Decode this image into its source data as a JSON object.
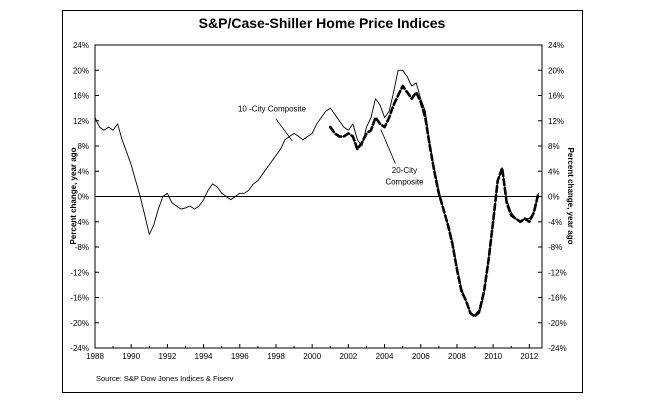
{
  "chart_data": {
    "type": "line",
    "title": "S&P/Case-Shiller Home Price Indices",
    "ylabel_left": "Percent change, year ago",
    "ylabel_right": "Percent change, year ago",
    "source": "Source: S&P Dow Jones Indices & Fiserv",
    "xlim": [
      1988,
      2012.7
    ],
    "ylim": [
      -24,
      24
    ],
    "x_ticks": [
      "1988",
      "1990",
      "1992",
      "1994",
      "1996",
      "1998",
      "2000",
      "2002",
      "2004",
      "2006",
      "2008",
      "2010",
      "2012"
    ],
    "y_ticks": [
      "24%",
      "20%",
      "16%",
      "12%",
      "8%",
      "4%",
      "0%",
      "-4%",
      "-8%",
      "-12%",
      "-16%",
      "-20%",
      "-24%"
    ],
    "grid": false,
    "annotations": {
      "ten_city": "10 -City Composite",
      "twenty_city_line1": "20-City",
      "twenty_city_line2": "Composite"
    },
    "series": [
      {
        "name": "10 -City Composite",
        "style": "solid",
        "color": "#000000",
        "x": [
          1988.0,
          1988.25,
          1988.5,
          1988.75,
          1989.0,
          1989.25,
          1989.5,
          1989.75,
          1990.0,
          1990.25,
          1990.5,
          1990.75,
          1991.0,
          1991.25,
          1991.5,
          1991.75,
          1992.0,
          1992.25,
          1992.5,
          1992.75,
          1993.0,
          1993.25,
          1993.5,
          1993.75,
          1994.0,
          1994.25,
          1994.5,
          1994.75,
          1995.0,
          1995.25,
          1995.5,
          1995.75,
          1996.0,
          1996.25,
          1996.5,
          1996.75,
          1997.0,
          1997.25,
          1997.5,
          1997.75,
          1998.0,
          1998.25,
          1998.5,
          1998.75,
          1999.0,
          1999.25,
          1999.5,
          1999.75,
          2000.0,
          2000.25,
          2000.5,
          2000.75,
          2001.0,
          2001.25,
          2001.5,
          2001.75,
          2002.0,
          2002.25,
          2002.5,
          2002.75,
          2003.0,
          2003.25,
          2003.5,
          2003.75,
          2004.0,
          2004.25,
          2004.5,
          2004.75,
          2005.0,
          2005.25,
          2005.5,
          2005.75,
          2006.0,
          2006.25,
          2006.5,
          2006.75,
          2007.0,
          2007.25,
          2007.5,
          2007.75,
          2008.0,
          2008.25,
          2008.5,
          2008.75,
          2009.0,
          2009.25,
          2009.5,
          2009.75,
          2010.0,
          2010.25,
          2010.5,
          2010.75,
          2011.0,
          2011.25,
          2011.5,
          2011.75,
          2012.0,
          2012.25,
          2012.5
        ],
        "y": [
          12.5,
          11.0,
          10.5,
          11.0,
          10.5,
          11.5,
          9.0,
          7.0,
          5.0,
          2.5,
          0.0,
          -3.0,
          -6.0,
          -4.5,
          -2.0,
          0.0,
          0.5,
          -1.0,
          -1.5,
          -2.0,
          -1.8,
          -1.5,
          -2.0,
          -1.5,
          -0.5,
          1.0,
          2.0,
          1.5,
          0.5,
          0.0,
          -0.5,
          0.0,
          0.5,
          0.5,
          1.0,
          2.0,
          2.5,
          3.5,
          4.5,
          5.5,
          6.5,
          7.5,
          9.0,
          9.5,
          10.0,
          9.5,
          9.0,
          9.5,
          10.0,
          11.5,
          12.5,
          13.5,
          14.0,
          13.0,
          12.0,
          11.0,
          10.5,
          11.5,
          9.0,
          8.0,
          11.0,
          12.5,
          15.5,
          14.5,
          12.5,
          13.5,
          16.5,
          20.0,
          20.0,
          19.0,
          17.5,
          18.0,
          15.5,
          13.5,
          8.5,
          4.5,
          1.0,
          -2.0,
          -4.5,
          -7.0,
          -11.0,
          -14.5,
          -16.5,
          -18.5,
          -19.0,
          -18.5,
          -15.5,
          -10.0,
          -4.0,
          2.5,
          4.5,
          -0.5,
          -2.5,
          -3.5,
          -4.0,
          -3.5,
          -3.5,
          -2.5,
          0.5
        ]
      },
      {
        "name": "20-City Composite",
        "style": "dashed",
        "color": "#000000",
        "x": [
          2001.0,
          2001.25,
          2001.5,
          2001.75,
          2002.0,
          2002.25,
          2002.5,
          2002.75,
          2003.0,
          2003.25,
          2003.5,
          2003.75,
          2004.0,
          2004.25,
          2004.5,
          2004.75,
          2005.0,
          2005.25,
          2005.5,
          2005.75,
          2006.0,
          2006.25,
          2006.5,
          2006.75,
          2007.0,
          2007.25,
          2007.5,
          2007.75,
          2008.0,
          2008.25,
          2008.5,
          2008.75,
          2009.0,
          2009.25,
          2009.5,
          2009.75,
          2010.0,
          2010.25,
          2010.5,
          2010.75,
          2011.0,
          2011.25,
          2011.5,
          2011.75,
          2012.0,
          2012.25,
          2012.5
        ],
        "y": [
          11.0,
          10.0,
          9.5,
          9.5,
          10.0,
          9.5,
          7.5,
          8.5,
          10.0,
          10.5,
          12.5,
          11.5,
          11.0,
          12.5,
          14.5,
          16.0,
          17.5,
          16.5,
          15.5,
          16.5,
          15.0,
          12.5,
          8.0,
          4.0,
          0.5,
          -2.0,
          -4.5,
          -7.5,
          -11.5,
          -15.0,
          -16.5,
          -18.5,
          -19.0,
          -18.0,
          -15.0,
          -10.0,
          -4.0,
          2.5,
          4.5,
          -1.0,
          -3.0,
          -3.5,
          -4.0,
          -3.5,
          -4.0,
          -2.5,
          0.5
        ]
      }
    ]
  }
}
